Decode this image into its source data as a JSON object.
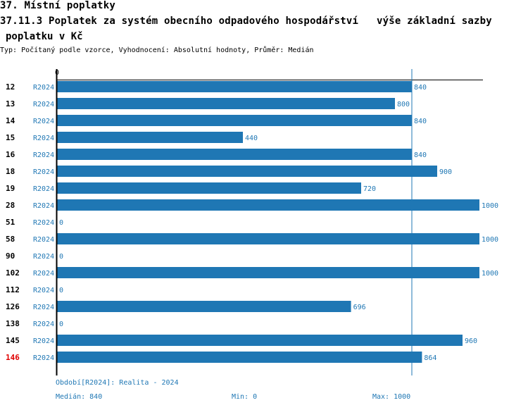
{
  "header": {
    "section": "37. Místní poplatky",
    "title_line1": "37.11.3 Poplatek za systém obecního odpadového hospodářství   výše základní sazby",
    "title_line2": "poplatku v Kč",
    "subtitle": "Typ: Počítaný podle vzorce, Vyhodnocení: Absolutní hodnoty, Průměr: Medián"
  },
  "colors": {
    "bar": "#1f77b4",
    "highlight": "#e00000",
    "axis": "#000000"
  },
  "chart_data": {
    "type": "bar",
    "orientation": "horizontal",
    "axis_zero_label": "0",
    "xlim": [
      0,
      1000
    ],
    "median": 840,
    "period": "R2024",
    "rows": [
      {
        "id": "12",
        "period": "R2024",
        "value": 840,
        "label": "840"
      },
      {
        "id": "13",
        "period": "R2024",
        "value": 800,
        "label": "800"
      },
      {
        "id": "14",
        "period": "R2024",
        "value": 840,
        "label": "840"
      },
      {
        "id": "15",
        "period": "R2024",
        "value": 440,
        "label": "440"
      },
      {
        "id": "16",
        "period": "R2024",
        "value": 840,
        "label": "840"
      },
      {
        "id": "18",
        "period": "R2024",
        "value": 900,
        "label": "900"
      },
      {
        "id": "19",
        "period": "R2024",
        "value": 720,
        "label": "720"
      },
      {
        "id": "28",
        "period": "R2024",
        "value": 1000,
        "label": "1000"
      },
      {
        "id": "51",
        "period": "R2024",
        "value": 0,
        "label": "0"
      },
      {
        "id": "58",
        "period": "R2024",
        "value": 1000,
        "label": "1000"
      },
      {
        "id": "90",
        "period": "R2024",
        "value": 0,
        "label": "0"
      },
      {
        "id": "102",
        "period": "R2024",
        "value": 1000,
        "label": "1000"
      },
      {
        "id": "112",
        "period": "R2024",
        "value": 0,
        "label": "0"
      },
      {
        "id": "126",
        "period": "R2024",
        "value": 696,
        "label": "696"
      },
      {
        "id": "138",
        "period": "R2024",
        "value": 0,
        "label": "0"
      },
      {
        "id": "145",
        "period": "R2024",
        "value": 960,
        "label": "960"
      },
      {
        "id": "146",
        "period": "R2024",
        "value": 864,
        "label": "864",
        "highlight": true
      }
    ]
  },
  "footer": {
    "period_legend": "Období[R2024]: Realita - 2024",
    "median": "Medián: 840",
    "min": "Min: 0",
    "max": "Max: 1000"
  }
}
